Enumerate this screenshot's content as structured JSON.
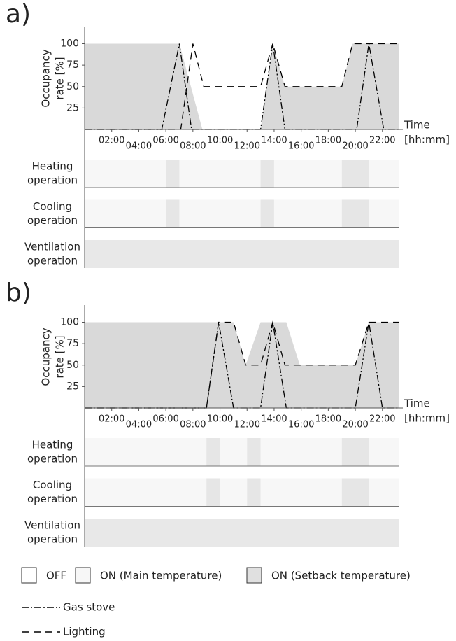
{
  "chart_data": [
    {
      "type": "line",
      "label": "a)",
      "ylabel": [
        "Occupancy",
        "rate [%]"
      ],
      "xlabel": [
        "Time",
        "[hh:mm]"
      ],
      "xlim": [
        0,
        23.2
      ],
      "ylim": [
        0,
        120
      ],
      "yticks": [
        25,
        50,
        75,
        100
      ],
      "xticks": [
        {
          "value": 2,
          "label": "02:00"
        },
        {
          "value": 4,
          "label": "04:00"
        },
        {
          "value": 6,
          "label": "06:00"
        },
        {
          "value": 8,
          "label": "08:00"
        },
        {
          "value": 10,
          "label": "10:00"
        },
        {
          "value": 12,
          "label": "12:00"
        },
        {
          "value": 14,
          "label": "14:00"
        },
        {
          "value": 16,
          "label": "16:00"
        },
        {
          "value": 18,
          "label": "18:00"
        },
        {
          "value": 20,
          "label": "20:00"
        },
        {
          "value": 22,
          "label": "22:00"
        }
      ],
      "occupancy": {
        "color": "#d9d9d9",
        "x": [
          0,
          7,
          8.7,
          13,
          13.9,
          14.8,
          19,
          19.8,
          23.2
        ],
        "values": [
          100,
          100,
          0,
          0,
          100,
          50,
          50,
          100,
          100
        ]
      },
      "series": [
        {
          "name": "Gas stove",
          "color": "#000000",
          "dash": "dash-dot",
          "x": [
            0,
            5.7,
            7,
            7.9,
            13,
            13.9,
            14.8,
            20.1,
            21,
            22.1,
            23.2
          ],
          "values": [
            0,
            0,
            100,
            0,
            0,
            100,
            0,
            0,
            100,
            0,
            0
          ]
        },
        {
          "name": "Lighting",
          "color": "#000000",
          "dash": "dashed",
          "x": [
            0,
            7.1,
            8,
            8.8,
            13,
            13.9,
            14.8,
            19,
            19.8,
            23.2
          ],
          "values": [
            0,
            0,
            100,
            50,
            50,
            100,
            50,
            50,
            100,
            100
          ]
        }
      ],
      "operations": [
        {
          "label": [
            "Heating",
            "operation"
          ],
          "periods": [
            {
              "start": 0,
              "end": 6,
              "color": "#f7f7f7"
            },
            {
              "start": 6,
              "end": 7,
              "color": "#e6e6e6"
            },
            {
              "start": 7,
              "end": 13,
              "color": "#f7f7f7"
            },
            {
              "start": 13,
              "end": 14,
              "color": "#e6e6e6"
            },
            {
              "start": 14,
              "end": 19,
              "color": "#f7f7f7"
            },
            {
              "start": 19,
              "end": 21,
              "color": "#e6e6e6"
            },
            {
              "start": 21,
              "end": 23.2,
              "color": "#f7f7f7"
            }
          ]
        },
        {
          "label": [
            "Cooling",
            "operation"
          ],
          "periods": [
            {
              "start": 0,
              "end": 6,
              "color": "#f7f7f7"
            },
            {
              "start": 6,
              "end": 7,
              "color": "#e6e6e6"
            },
            {
              "start": 7,
              "end": 13,
              "color": "#f7f7f7"
            },
            {
              "start": 13,
              "end": 14,
              "color": "#e6e6e6"
            },
            {
              "start": 14,
              "end": 19,
              "color": "#f7f7f7"
            },
            {
              "start": 19,
              "end": 21,
              "color": "#e6e6e6"
            },
            {
              "start": 21,
              "end": 23.2,
              "color": "#f7f7f7"
            }
          ]
        },
        {
          "label": [
            "Ventilation",
            "operation"
          ],
          "periods": [
            {
              "start": 0,
              "end": 23.2,
              "color": "#e8e8e8"
            }
          ]
        }
      ]
    },
    {
      "type": "line",
      "label": "b)",
      "ylabel": [
        "Occupancy",
        "rate [%]"
      ],
      "xlabel": [
        "Time",
        "[hh:mm]"
      ],
      "xlim": [
        0,
        23.2
      ],
      "ylim": [
        0,
        120
      ],
      "yticks": [
        25,
        50,
        75,
        100
      ],
      "xticks": [
        {
          "value": 2,
          "label": "02:00"
        },
        {
          "value": 4,
          "label": "04:00"
        },
        {
          "value": 6,
          "label": "06:00"
        },
        {
          "value": 8,
          "label": "08:00"
        },
        {
          "value": 10,
          "label": "10:00"
        },
        {
          "value": 12,
          "label": "12:00"
        },
        {
          "value": 14,
          "label": "14:00"
        },
        {
          "value": 16,
          "label": "16:00"
        },
        {
          "value": 18,
          "label": "18:00"
        },
        {
          "value": 20,
          "label": "20:00"
        },
        {
          "value": 22,
          "label": "22:00"
        }
      ],
      "occupancy": {
        "color": "#d9d9d9",
        "x": [
          0,
          11,
          11.9,
          13,
          14.9,
          15.9,
          20,
          21,
          23.2
        ],
        "values": [
          100,
          100,
          50,
          100,
          100,
          50,
          50,
          100,
          100
        ]
      },
      "series": [
        {
          "name": "Gas stove",
          "color": "#000000",
          "dash": "dash-dot",
          "x": [
            0,
            9,
            9.9,
            11,
            13,
            13.9,
            14.9,
            20,
            21,
            22,
            23.2
          ],
          "values": [
            0,
            0,
            100,
            0,
            0,
            100,
            0,
            0,
            100,
            0,
            0
          ]
        },
        {
          "name": "Lighting",
          "color": "#000000",
          "dash": "dashed",
          "x": [
            0,
            9,
            9.9,
            11,
            11.9,
            13,
            13.9,
            14.8,
            20,
            21,
            23.2
          ],
          "values": [
            0,
            0,
            100,
            100,
            50,
            50,
            100,
            50,
            50,
            100,
            100
          ]
        }
      ],
      "operations": [
        {
          "label": [
            "Heating",
            "operation"
          ],
          "periods": [
            {
              "start": 0,
              "end": 9,
              "color": "#f7f7f7"
            },
            {
              "start": 9,
              "end": 10,
              "color": "#e6e6e6"
            },
            {
              "start": 10,
              "end": 12,
              "color": "#f7f7f7"
            },
            {
              "start": 12,
              "end": 13,
              "color": "#e6e6e6"
            },
            {
              "start": 13,
              "end": 19,
              "color": "#f7f7f7"
            },
            {
              "start": 19,
              "end": 21,
              "color": "#e6e6e6"
            },
            {
              "start": 21,
              "end": 23.2,
              "color": "#f7f7f7"
            }
          ]
        },
        {
          "label": [
            "Cooling",
            "operation"
          ],
          "periods": [
            {
              "start": 0,
              "end": 9,
              "color": "#f7f7f7"
            },
            {
              "start": 9,
              "end": 10,
              "color": "#e6e6e6"
            },
            {
              "start": 10,
              "end": 12,
              "color": "#f7f7f7"
            },
            {
              "start": 12,
              "end": 13,
              "color": "#e6e6e6"
            },
            {
              "start": 13,
              "end": 19,
              "color": "#f7f7f7"
            },
            {
              "start": 19,
              "end": 21,
              "color": "#e6e6e6"
            },
            {
              "start": 21,
              "end": 23.2,
              "color": "#f7f7f7"
            }
          ]
        },
        {
          "label": [
            "Ventilation",
            "operation"
          ],
          "periods": [
            {
              "start": 0,
              "end": 23.2,
              "color": "#e8e8e8"
            }
          ]
        }
      ]
    }
  ],
  "legend": [
    {
      "label": "OFF",
      "color": "#ffffff"
    },
    {
      "label": "ON (Main temperature)",
      "color": "#f7f7f7"
    },
    {
      "label": "ON (Setback temperature)",
      "color": "#e0e0e0"
    }
  ]
}
